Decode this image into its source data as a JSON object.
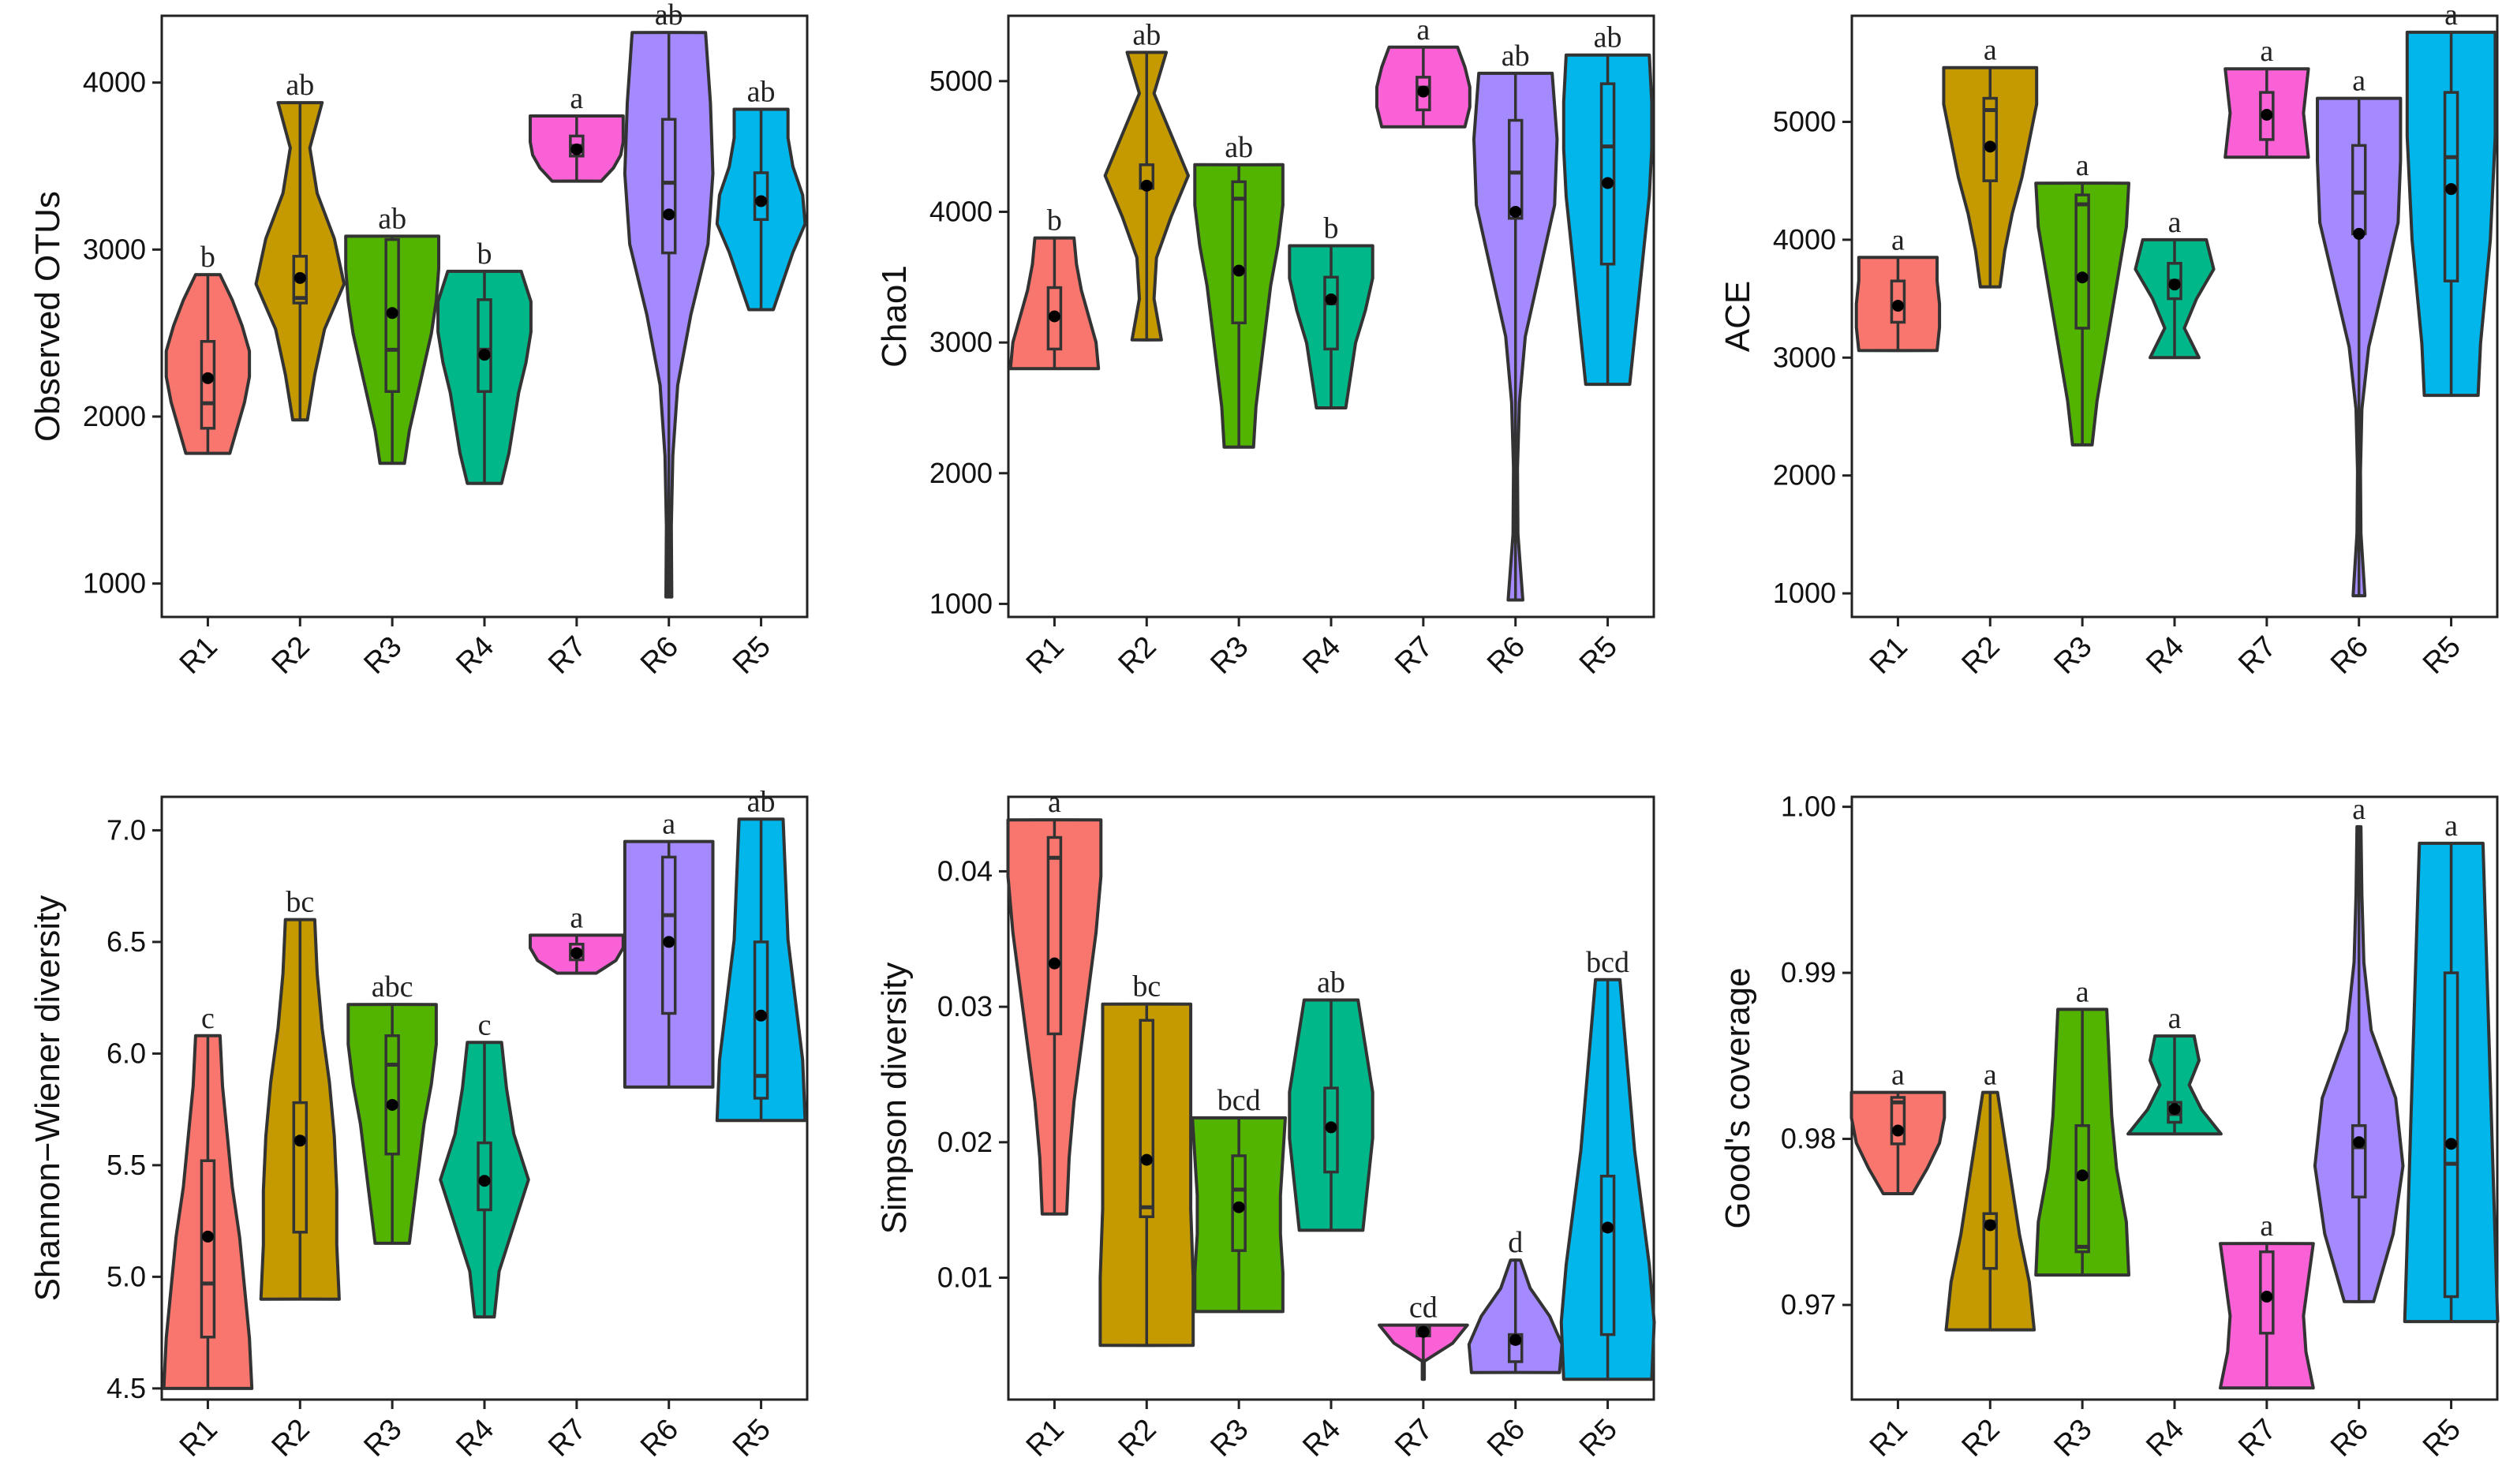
{
  "chart_data": [
    {
      "type": "violin",
      "ylabel": "Observed OTUs",
      "ylim": [
        800,
        4400
      ],
      "yticks": [
        1000,
        2000,
        3000,
        4000
      ],
      "categories": [
        "R1",
        "R2",
        "R3",
        "R4",
        "R7",
        "R6",
        "R5"
      ],
      "groups": [
        {
          "name": "R1",
          "color": "#F8766D",
          "min": 1780,
          "max": 2850,
          "q1": 1930,
          "median": 2080,
          "q3": 2450,
          "mean": 2230,
          "sig": "b",
          "shape": [
            0.45,
            0.6,
            0.75,
            0.85,
            0.85,
            0.7,
            0.5,
            0.25
          ]
        },
        {
          "name": "R2",
          "color": "#C49A00",
          "min": 1980,
          "max": 3880,
          "q1": 2680,
          "median": 2710,
          "q3": 2960,
          "mean": 2830,
          "sig": "ab",
          "shape": [
            0.15,
            0.3,
            0.5,
            0.9,
            0.7,
            0.35,
            0.2,
            0.45
          ]
        },
        {
          "name": "R3",
          "color": "#53B400",
          "min": 1720,
          "max": 3080,
          "q1": 2150,
          "median": 2400,
          "q3": 3060,
          "mean": 2620,
          "sig": "ab",
          "shape": [
            0.25,
            0.35,
            0.5,
            0.65,
            0.8,
            0.9,
            0.95,
            0.95
          ]
        },
        {
          "name": "R4",
          "color": "#00B789",
          "min": 1600,
          "max": 2870,
          "q1": 2150,
          "median": 2400,
          "q3": 2700,
          "mean": 2370,
          "sig": "b",
          "shape": [
            0.35,
            0.5,
            0.6,
            0.7,
            0.85,
            0.95,
            0.95,
            0.75
          ]
        },
        {
          "name": "R7",
          "color": "#FB61D7",
          "min": 3410,
          "max": 3800,
          "q1": 3560,
          "median": 3620,
          "q3": 3680,
          "mean": 3600,
          "sig": "a",
          "shape": [
            0.5,
            0.75,
            0.9,
            0.95,
            0.95,
            0.95
          ]
        },
        {
          "name": "R6",
          "color": "#A58AFF",
          "min": 920,
          "max": 4300,
          "q1": 2980,
          "median": 3400,
          "q3": 3780,
          "mean": 3210,
          "sig": "ab",
          "shape": [
            0.06,
            0.05,
            0.08,
            0.18,
            0.45,
            0.8,
            0.9,
            0.85,
            0.75
          ]
        },
        {
          "name": "R5",
          "color": "#00B6EB",
          "min": 2640,
          "max": 3840,
          "q1": 3180,
          "median": 3300,
          "q3": 3460,
          "mean": 3290,
          "sig": "ab",
          "shape": [
            0.25,
            0.45,
            0.65,
            0.9,
            0.85,
            0.65,
            0.55,
            0.55
          ]
        }
      ]
    },
    {
      "type": "violin",
      "ylabel": "Chao1",
      "ylim": [
        900,
        5500
      ],
      "yticks": [
        1000,
        2000,
        3000,
        4000,
        5000
      ],
      "categories": [
        "R1",
        "R2",
        "R3",
        "R4",
        "R7",
        "R6",
        "R5"
      ],
      "groups": [
        {
          "name": "R1",
          "color": "#F8766D",
          "min": 2800,
          "max": 3800,
          "q1": 2950,
          "median": 3200,
          "q3": 3420,
          "mean": 3200,
          "sig": "b",
          "shape": [
            0.9,
            0.85,
            0.7,
            0.55,
            0.45,
            0.4
          ]
        },
        {
          "name": "R2",
          "color": "#C49A00",
          "min": 3020,
          "max": 5220,
          "q1": 4180,
          "median": 4200,
          "q3": 4360,
          "mean": 4200,
          "sig": "ab",
          "shape": [
            0.3,
            0.15,
            0.2,
            0.5,
            0.85,
            0.5,
            0.15,
            0.4
          ]
        },
        {
          "name": "R3",
          "color": "#53B400",
          "min": 2200,
          "max": 4360,
          "q1": 3150,
          "median": 4100,
          "q3": 4230,
          "mean": 3550,
          "sig": "ab",
          "shape": [
            0.3,
            0.35,
            0.45,
            0.55,
            0.65,
            0.8,
            0.9,
            0.9
          ]
        },
        {
          "name": "R4",
          "color": "#00B789",
          "min": 2500,
          "max": 3740,
          "q1": 2950,
          "median": 3300,
          "q3": 3500,
          "mean": 3330,
          "sig": "b",
          "shape": [
            0.3,
            0.4,
            0.5,
            0.7,
            0.85,
            0.85
          ]
        },
        {
          "name": "R7",
          "color": "#FB61D7",
          "min": 4650,
          "max": 5260,
          "q1": 4780,
          "median": 4950,
          "q3": 5030,
          "mean": 4920,
          "sig": "a",
          "shape": [
            0.85,
            0.95,
            0.95,
            0.85,
            0.7
          ]
        },
        {
          "name": "R6",
          "color": "#A58AFF",
          "min": 1030,
          "max": 5060,
          "q1": 3950,
          "median": 4300,
          "q3": 4700,
          "mean": 4000,
          "sig": "ab",
          "shape": [
            0.15,
            0.05,
            0.04,
            0.08,
            0.2,
            0.5,
            0.8,
            0.85,
            0.75
          ]
        },
        {
          "name": "R5",
          "color": "#00B6EB",
          "min": 2680,
          "max": 5200,
          "q1": 3600,
          "median": 4500,
          "q3": 4980,
          "mean": 4220,
          "sig": "ab",
          "shape": [
            0.45,
            0.55,
            0.65,
            0.75,
            0.85,
            0.9,
            0.9,
            0.85
          ]
        }
      ]
    },
    {
      "type": "violin",
      "ylabel": "ACE",
      "ylim": [
        800,
        5900
      ],
      "yticks": [
        1000,
        2000,
        3000,
        4000,
        5000
      ],
      "categories": [
        "R1",
        "R2",
        "R3",
        "R4",
        "R7",
        "R6",
        "R5"
      ],
      "groups": [
        {
          "name": "R1",
          "color": "#F8766D",
          "min": 3060,
          "max": 3850,
          "q1": 3300,
          "median": 3450,
          "q3": 3650,
          "mean": 3440,
          "sig": "a",
          "shape": [
            0.8,
            0.85,
            0.85,
            0.8,
            0.8
          ]
        },
        {
          "name": "R2",
          "color": "#C49A00",
          "min": 3600,
          "max": 5460,
          "q1": 4500,
          "median": 5100,
          "q3": 5200,
          "mean": 4790,
          "sig": "a",
          "shape": [
            0.2,
            0.3,
            0.45,
            0.65,
            0.8,
            0.95,
            0.95
          ]
        },
        {
          "name": "R3",
          "color": "#53B400",
          "min": 2260,
          "max": 4480,
          "q1": 3250,
          "median": 4300,
          "q3": 4380,
          "mean": 3680,
          "sig": "a",
          "shape": [
            0.2,
            0.3,
            0.45,
            0.6,
            0.75,
            0.9,
            0.95
          ]
        },
        {
          "name": "R4",
          "color": "#00B789",
          "min": 3000,
          "max": 4000,
          "q1": 3500,
          "median": 3650,
          "q3": 3800,
          "mean": 3620,
          "sig": "a",
          "shape": [
            0.5,
            0.2,
            0.45,
            0.8,
            0.65
          ]
        },
        {
          "name": "R7",
          "color": "#FB61D7",
          "min": 4700,
          "max": 5450,
          "q1": 4850,
          "median": 5050,
          "q3": 5250,
          "mean": 5060,
          "sig": "a",
          "shape": [
            0.85,
            0.8,
            0.75,
            0.8,
            0.85
          ]
        },
        {
          "name": "R6",
          "color": "#A58AFF",
          "min": 980,
          "max": 5200,
          "q1": 4050,
          "median": 4400,
          "q3": 4800,
          "mean": 4050,
          "sig": "a",
          "shape": [
            0.12,
            0.04,
            0.03,
            0.06,
            0.2,
            0.5,
            0.8,
            0.85,
            0.85
          ]
        },
        {
          "name": "R5",
          "color": "#00B6EB",
          "min": 2680,
          "max": 5760,
          "q1": 3650,
          "median": 4700,
          "q3": 5250,
          "mean": 4430,
          "sig": "a",
          "shape": [
            0.55,
            0.6,
            0.7,
            0.8,
            0.85,
            0.9,
            0.9,
            0.9
          ]
        }
      ]
    },
    {
      "type": "violin",
      "ylabel": "Shannon−Wiener diversity",
      "ylim": [
        4.45,
        7.15
      ],
      "yticks": [
        4.5,
        5.0,
        5.5,
        6.0,
        6.5,
        7.0
      ],
      "ytick_format": 1,
      "categories": [
        "R1",
        "R2",
        "R3",
        "R4",
        "R7",
        "R6",
        "R5"
      ],
      "groups": [
        {
          "name": "R1",
          "color": "#F8766D",
          "min": 4.5,
          "max": 6.08,
          "q1": 4.73,
          "median": 4.97,
          "q3": 5.52,
          "mean": 5.18,
          "sig": "c",
          "shape": [
            0.9,
            0.85,
            0.75,
            0.65,
            0.5,
            0.4,
            0.3,
            0.25
          ]
        },
        {
          "name": "R2",
          "color": "#C49A00",
          "min": 4.9,
          "max": 6.6,
          "q1": 5.2,
          "median": 5.62,
          "q3": 5.78,
          "mean": 5.61,
          "sig": "bc",
          "shape": [
            0.8,
            0.75,
            0.75,
            0.7,
            0.6,
            0.45,
            0.35,
            0.3
          ]
        },
        {
          "name": "R3",
          "color": "#53B400",
          "min": 5.15,
          "max": 6.22,
          "q1": 5.55,
          "median": 5.95,
          "q3": 6.08,
          "mean": 5.77,
          "sig": "abc",
          "shape": [
            0.35,
            0.45,
            0.55,
            0.65,
            0.8,
            0.9,
            0.9
          ]
        },
        {
          "name": "R4",
          "color": "#00B789",
          "min": 4.82,
          "max": 6.05,
          "q1": 5.3,
          "median": 5.43,
          "q3": 5.6,
          "mean": 5.43,
          "sig": "c",
          "shape": [
            0.2,
            0.3,
            0.6,
            0.9,
            0.6,
            0.45,
            0.35
          ]
        },
        {
          "name": "R7",
          "color": "#FB61D7",
          "min": 6.36,
          "max": 6.53,
          "q1": 6.42,
          "median": 6.46,
          "q3": 6.49,
          "mean": 6.45,
          "sig": "a",
          "shape": [
            0.4,
            0.8,
            0.95,
            0.95
          ]
        },
        {
          "name": "R6",
          "color": "#A58AFF",
          "min": 5.85,
          "max": 6.95,
          "q1": 6.18,
          "median": 6.62,
          "q3": 6.88,
          "mean": 6.5,
          "sig": "a",
          "shape": [
            0.9,
            0.9,
            0.9,
            0.9,
            0.9
          ]
        },
        {
          "name": "R5",
          "color": "#00B6EB",
          "min": 5.7,
          "max": 7.05,
          "q1": 5.8,
          "median": 5.9,
          "q3": 6.5,
          "mean": 6.17,
          "sig": "ab",
          "shape": [
            0.9,
            0.85,
            0.7,
            0.55,
            0.5,
            0.45
          ]
        }
      ]
    },
    {
      "type": "violin",
      "ylabel": "Simpson diversity",
      "ylim": [
        0.001,
        0.0455
      ],
      "yticks": [
        0.01,
        0.02,
        0.03,
        0.04
      ],
      "ytick_format": 2,
      "categories": [
        "R1",
        "R2",
        "R3",
        "R4",
        "R7",
        "R6",
        "R5"
      ],
      "groups": [
        {
          "name": "R1",
          "color": "#F8766D",
          "min": 0.0147,
          "max": 0.0438,
          "q1": 0.028,
          "median": 0.041,
          "q3": 0.0425,
          "mean": 0.0332,
          "sig": "a",
          "shape": [
            0.25,
            0.3,
            0.4,
            0.55,
            0.7,
            0.85,
            0.95,
            0.95
          ]
        },
        {
          "name": "R2",
          "color": "#C49A00",
          "min": 0.005,
          "max": 0.0302,
          "q1": 0.0145,
          "median": 0.0152,
          "q3": 0.029,
          "mean": 0.0187,
          "sig": "bc",
          "shape": [
            0.95,
            0.95,
            0.9,
            0.9,
            0.9,
            0.9
          ]
        },
        {
          "name": "R3",
          "color": "#53B400",
          "min": 0.0075,
          "max": 0.0218,
          "q1": 0.012,
          "median": 0.0165,
          "q3": 0.019,
          "mean": 0.0152,
          "sig": "bcd",
          "shape": [
            0.9,
            0.9,
            0.85,
            0.85,
            0.9,
            0.95
          ]
        },
        {
          "name": "R4",
          "color": "#00B789",
          "min": 0.0135,
          "max": 0.0305,
          "q1": 0.0178,
          "median": 0.0212,
          "q3": 0.024,
          "mean": 0.0211,
          "sig": "ab",
          "shape": [
            0.65,
            0.75,
            0.85,
            0.85,
            0.7,
            0.55
          ]
        },
        {
          "name": "R7",
          "color": "#FB61D7",
          "min": 0.0025,
          "max": 0.0065,
          "q1": 0.0057,
          "median": 0.006,
          "q3": 0.0063,
          "mean": 0.006,
          "sig": "cd",
          "shape": [
            0.02,
            0.02,
            0.6,
            0.9
          ]
        },
        {
          "name": "R6",
          "color": "#A58AFF",
          "min": 0.003,
          "max": 0.0113,
          "q1": 0.0038,
          "median": 0.0052,
          "q3": 0.0058,
          "mean": 0.0054,
          "sig": "d",
          "shape": [
            0.9,
            0.95,
            0.7,
            0.3,
            0.1
          ]
        },
        {
          "name": "R5",
          "color": "#00B6EB",
          "min": 0.0025,
          "max": 0.032,
          "q1": 0.0058,
          "median": 0.0135,
          "q3": 0.0175,
          "mean": 0.0137,
          "sig": "bcd",
          "shape": [
            0.9,
            0.95,
            0.85,
            0.7,
            0.55,
            0.45,
            0.35,
            0.25
          ]
        }
      ]
    },
    {
      "type": "violin",
      "ylabel": "Good's coverage",
      "ylim": [
        0.9643,
        1.0006
      ],
      "yticks": [
        0.97,
        0.98,
        0.99,
        1.0
      ],
      "ytick_format": 2,
      "categories": [
        "R1",
        "R2",
        "R3",
        "R4",
        "R7",
        "R6",
        "R5"
      ],
      "groups": [
        {
          "name": "R1",
          "color": "#F8766D",
          "min": 0.9767,
          "max": 0.9828,
          "q1": 0.9797,
          "median": 0.9822,
          "q3": 0.9825,
          "mean": 0.9805,
          "sig": "a",
          "shape": [
            0.3,
            0.6,
            0.85,
            0.95,
            0.95
          ]
        },
        {
          "name": "R2",
          "color": "#C49A00",
          "min": 0.9685,
          "max": 0.9828,
          "q1": 0.9722,
          "median": 0.975,
          "q3": 0.9755,
          "mean": 0.9748,
          "sig": "a",
          "shape": [
            0.9,
            0.8,
            0.6,
            0.45,
            0.3,
            0.15
          ]
        },
        {
          "name": "R3",
          "color": "#53B400",
          "min": 0.9718,
          "max": 0.9878,
          "q1": 0.9732,
          "median": 0.9735,
          "q3": 0.9808,
          "mean": 0.9778,
          "sig": "a",
          "shape": [
            0.95,
            0.9,
            0.7,
            0.6,
            0.55,
            0.5
          ]
        },
        {
          "name": "R4",
          "color": "#00B789",
          "min": 0.9803,
          "max": 0.9862,
          "q1": 0.981,
          "median": 0.9815,
          "q3": 0.9822,
          "mean": 0.9818,
          "sig": "a",
          "shape": [
            0.95,
            0.55,
            0.3,
            0.5,
            0.4
          ]
        },
        {
          "name": "R7",
          "color": "#FB61D7",
          "min": 0.965,
          "max": 0.9737,
          "q1": 0.9683,
          "median": 0.9705,
          "q3": 0.9732,
          "mean": 0.9705,
          "sig": "a",
          "shape": [
            0.95,
            0.8,
            0.75,
            0.85,
            0.95
          ]
        },
        {
          "name": "R6",
          "color": "#A58AFF",
          "min": 0.9702,
          "max": 0.9988,
          "q1": 0.9765,
          "median": 0.9795,
          "q3": 0.9808,
          "mean": 0.9798,
          "sig": "a",
          "shape": [
            0.3,
            0.7,
            0.9,
            0.75,
            0.25,
            0.1,
            0.06,
            0.04
          ]
        },
        {
          "name": "R5",
          "color": "#00B6EB",
          "min": 0.969,
          "max": 0.9978,
          "q1": 0.9705,
          "median": 0.9785,
          "q3": 0.99,
          "mean": 0.9797,
          "sig": "a",
          "shape": [
            0.95,
            0.9,
            0.85,
            0.8,
            0.75,
            0.7,
            0.65
          ]
        }
      ]
    }
  ]
}
